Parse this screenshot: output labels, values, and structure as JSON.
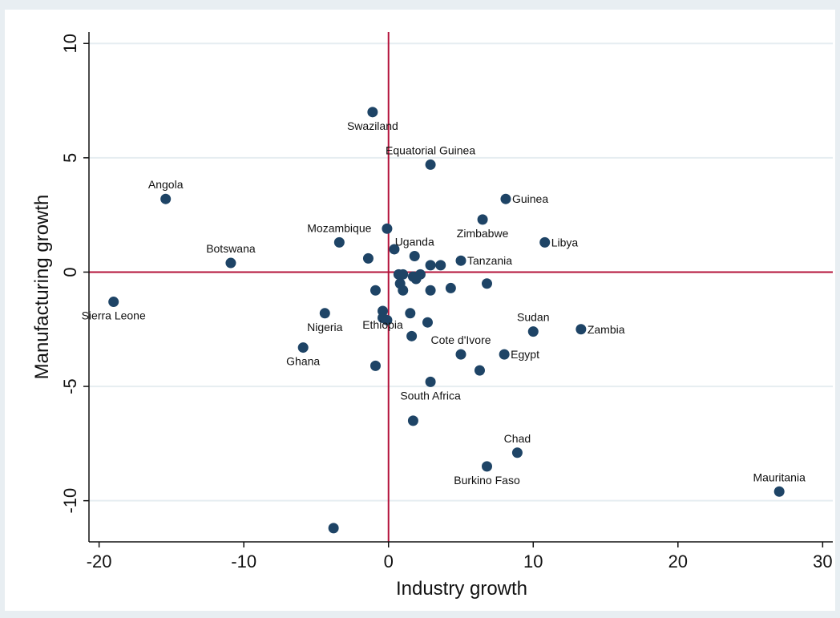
{
  "chart_data": {
    "type": "scatter",
    "title": "",
    "xlabel": "Industry growth",
    "ylabel": "Manufacturing growth",
    "xlim": [
      -20.7,
      30.7
    ],
    "ylim": [
      -11.8,
      10.5
    ],
    "xticks": [
      -20,
      -10,
      0,
      10,
      20,
      30
    ],
    "yticks": [
      10,
      5,
      0,
      -5,
      -10
    ],
    "xtick_labels": [
      "-20",
      "-10",
      "0",
      "10",
      "20",
      "30"
    ],
    "ytick_labels": [
      "10",
      "5",
      "0",
      "-5",
      "-10"
    ],
    "grid": "horizontal",
    "reference_lines": {
      "x": 0,
      "y": 0,
      "color": "#b3123a"
    },
    "point_color": "#1e4466",
    "points": [
      {
        "x": -15.4,
        "y": 3.2,
        "label": "Angola",
        "pos": "top"
      },
      {
        "x": -1.1,
        "y": 7.0,
        "label": "Swaziland",
        "pos": "below"
      },
      {
        "x": 2.9,
        "y": 4.7,
        "label": "Equatorial Guinea",
        "pos": "top"
      },
      {
        "x": 8.1,
        "y": 3.2,
        "label": "Guinea",
        "pos": "right"
      },
      {
        "x": 6.5,
        "y": 2.3,
        "label": "Zimbabwe",
        "pos": "below"
      },
      {
        "x": 10.8,
        "y": 1.3,
        "label": "Libya",
        "pos": "right"
      },
      {
        "x": -3.4,
        "y": 1.3,
        "label": "Mozambique",
        "pos": "top"
      },
      {
        "x": -10.9,
        "y": 0.4,
        "label": "Botswana",
        "pos": "top"
      },
      {
        "x": 1.8,
        "y": 0.7,
        "label": "Uganda",
        "pos": "top"
      },
      {
        "x": 5.0,
        "y": 0.5,
        "label": "Tanzania",
        "pos": "right"
      },
      {
        "x": -19.0,
        "y": -1.3,
        "label": "Sierra Leone",
        "pos": "below"
      },
      {
        "x": -4.4,
        "y": -1.8,
        "label": "Nigeria",
        "pos": "below"
      },
      {
        "x": -0.4,
        "y": -1.7,
        "label": "Ethiopia",
        "pos": "below"
      },
      {
        "x": 10.0,
        "y": -2.6,
        "label": "Sudan",
        "pos": "top"
      },
      {
        "x": 13.3,
        "y": -2.5,
        "label": "Zambia",
        "pos": "right"
      },
      {
        "x": 5.0,
        "y": -3.6,
        "label": "Cote d'Ivore",
        "pos": "top"
      },
      {
        "x": 8.0,
        "y": -3.6,
        "label": "Egypt",
        "pos": "right"
      },
      {
        "x": -5.9,
        "y": -3.3,
        "label": "Ghana",
        "pos": "below"
      },
      {
        "x": 2.9,
        "y": -4.8,
        "label": "South Africa",
        "pos": "below"
      },
      {
        "x": 8.9,
        "y": -7.9,
        "label": "Chad",
        "pos": "top"
      },
      {
        "x": 6.8,
        "y": -8.5,
        "label": "Burkino Faso",
        "pos": "below"
      },
      {
        "x": 27.0,
        "y": -9.6,
        "label": "Mauritania",
        "pos": "top"
      },
      {
        "x": -0.1,
        "y": 1.9
      },
      {
        "x": 0.4,
        "y": 1.0
      },
      {
        "x": -1.4,
        "y": 0.6
      },
      {
        "x": 2.9,
        "y": 0.3
      },
      {
        "x": 3.6,
        "y": 0.3
      },
      {
        "x": 0.7,
        "y": -0.1
      },
      {
        "x": 1.0,
        "y": -0.1
      },
      {
        "x": 1.7,
        "y": -0.2
      },
      {
        "x": 2.2,
        "y": -0.1
      },
      {
        "x": 1.9,
        "y": -0.3
      },
      {
        "x": 0.8,
        "y": -0.5
      },
      {
        "x": -0.9,
        "y": -0.8
      },
      {
        "x": 1.0,
        "y": -0.8
      },
      {
        "x": 2.9,
        "y": -0.8
      },
      {
        "x": 4.3,
        "y": -0.7
      },
      {
        "x": 6.8,
        "y": -0.5
      },
      {
        "x": 1.5,
        "y": -1.8
      },
      {
        "x": -0.4,
        "y": -2.0
      },
      {
        "x": -0.1,
        "y": -2.1
      },
      {
        "x": 2.7,
        "y": -2.2
      },
      {
        "x": 1.6,
        "y": -2.8
      },
      {
        "x": -0.9,
        "y": -4.1
      },
      {
        "x": 6.3,
        "y": -4.3
      },
      {
        "x": 1.7,
        "y": -6.5
      },
      {
        "x": -3.8,
        "y": -11.2
      }
    ]
  }
}
